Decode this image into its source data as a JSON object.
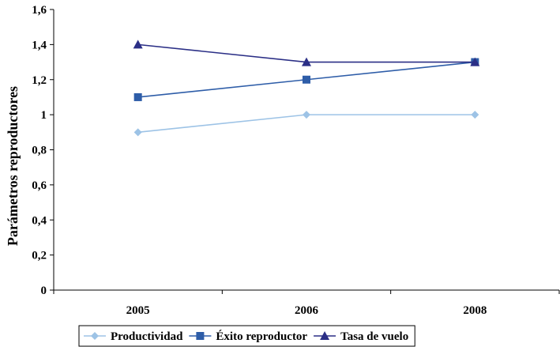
{
  "chart_data": {
    "type": "line",
    "title": "",
    "xlabel": "",
    "ylabel": "Parámetros reproductores",
    "categories": [
      "2005",
      "2006",
      "2008"
    ],
    "ylim": [
      0,
      1.6
    ],
    "y_ticks": [
      0,
      0.2,
      0.4,
      0.6,
      0.8,
      1.0,
      1.2,
      1.4,
      1.6
    ],
    "y_tick_labels": [
      "0",
      "0,2",
      "0,4",
      "0,6",
      "0,8",
      "1",
      "1,2",
      "1,4",
      "1,6"
    ],
    "grid": false,
    "legend_position": "bottom",
    "series": [
      {
        "name": "Productividad",
        "values": [
          0.9,
          1.0,
          1.0
        ],
        "color": "#9DC3E6",
        "marker": "diamond"
      },
      {
        "name": "Éxito reproductor",
        "values": [
          1.1,
          1.2,
          1.3
        ],
        "color": "#2E5DA8",
        "marker": "square"
      },
      {
        "name": "Tasa de vuelo",
        "values": [
          1.4,
          1.3,
          1.3
        ],
        "color": "#2B2F86",
        "marker": "triangle"
      }
    ]
  }
}
